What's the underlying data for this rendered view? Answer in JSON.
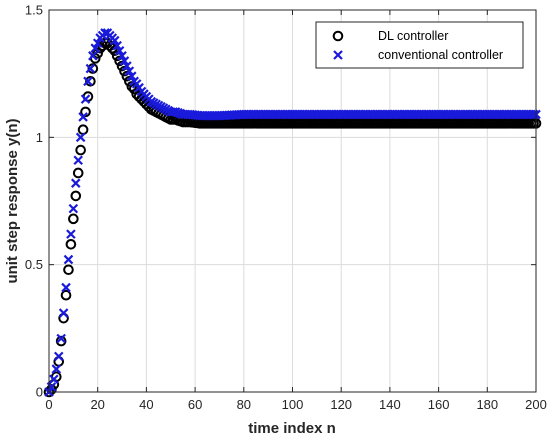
{
  "chart_data": {
    "type": "scatter",
    "title": "",
    "xlabel": "time index n",
    "ylabel": "unit step response y(n)",
    "xlim": [
      0,
      200
    ],
    "ylim": [
      0,
      1.5
    ],
    "xticks": [
      "0",
      "20",
      "40",
      "60",
      "80",
      "100",
      "120",
      "140",
      "160",
      "180",
      "200"
    ],
    "yticks": [
      "0",
      "0.5",
      "1",
      "1.5"
    ],
    "grid": true,
    "legend_position": "top-right",
    "series": [
      {
        "name": "DL controller",
        "marker": "circle",
        "color": "#000000",
        "x": [
          0,
          1,
          2,
          3,
          4,
          5,
          6,
          7,
          8,
          9,
          10,
          11,
          12,
          13,
          14,
          15,
          16,
          17,
          18,
          19,
          20,
          21,
          22,
          23,
          24,
          25,
          26,
          27,
          28,
          29,
          30,
          31,
          32,
          33,
          34,
          35,
          36,
          38,
          40,
          42,
          44,
          46,
          48,
          50,
          52,
          55,
          58,
          62,
          66,
          70,
          80,
          90,
          100,
          120,
          140,
          160,
          180,
          200
        ],
        "y": [
          0.0,
          0.01,
          0.03,
          0.06,
          0.12,
          0.2,
          0.29,
          0.38,
          0.48,
          0.58,
          0.68,
          0.77,
          0.86,
          0.95,
          1.03,
          1.1,
          1.16,
          1.22,
          1.27,
          1.31,
          1.33,
          1.35,
          1.36,
          1.37,
          1.37,
          1.36,
          1.35,
          1.34,
          1.32,
          1.3,
          1.28,
          1.26,
          1.24,
          1.22,
          1.2,
          1.19,
          1.17,
          1.15,
          1.13,
          1.11,
          1.1,
          1.09,
          1.08,
          1.07,
          1.07,
          1.06,
          1.06,
          1.055,
          1.055,
          1.055,
          1.055,
          1.055,
          1.055,
          1.055,
          1.055,
          1.055,
          1.055,
          1.055
        ]
      },
      {
        "name": "conventional controller",
        "marker": "x",
        "color": "#1a1adb",
        "x": [
          0,
          1,
          2,
          3,
          4,
          5,
          6,
          7,
          8,
          9,
          10,
          11,
          12,
          13,
          14,
          15,
          16,
          17,
          18,
          19,
          20,
          21,
          22,
          23,
          24,
          25,
          26,
          27,
          28,
          29,
          30,
          31,
          32,
          33,
          34,
          35,
          36,
          38,
          40,
          42,
          44,
          46,
          48,
          50,
          52,
          55,
          58,
          62,
          66,
          70,
          80,
          90,
          100,
          120,
          140,
          160,
          180,
          200
        ],
        "y": [
          0.0,
          0.02,
          0.05,
          0.09,
          0.14,
          0.21,
          0.31,
          0.41,
          0.52,
          0.62,
          0.72,
          0.82,
          0.91,
          1.0,
          1.08,
          1.15,
          1.22,
          1.27,
          1.32,
          1.35,
          1.37,
          1.39,
          1.4,
          1.41,
          1.41,
          1.4,
          1.39,
          1.38,
          1.36,
          1.34,
          1.32,
          1.3,
          1.28,
          1.26,
          1.24,
          1.22,
          1.21,
          1.18,
          1.16,
          1.14,
          1.13,
          1.12,
          1.11,
          1.1,
          1.1,
          1.09,
          1.09,
          1.085,
          1.085,
          1.085,
          1.09,
          1.09,
          1.09,
          1.09,
          1.09,
          1.09,
          1.09,
          1.09
        ]
      }
    ]
  }
}
